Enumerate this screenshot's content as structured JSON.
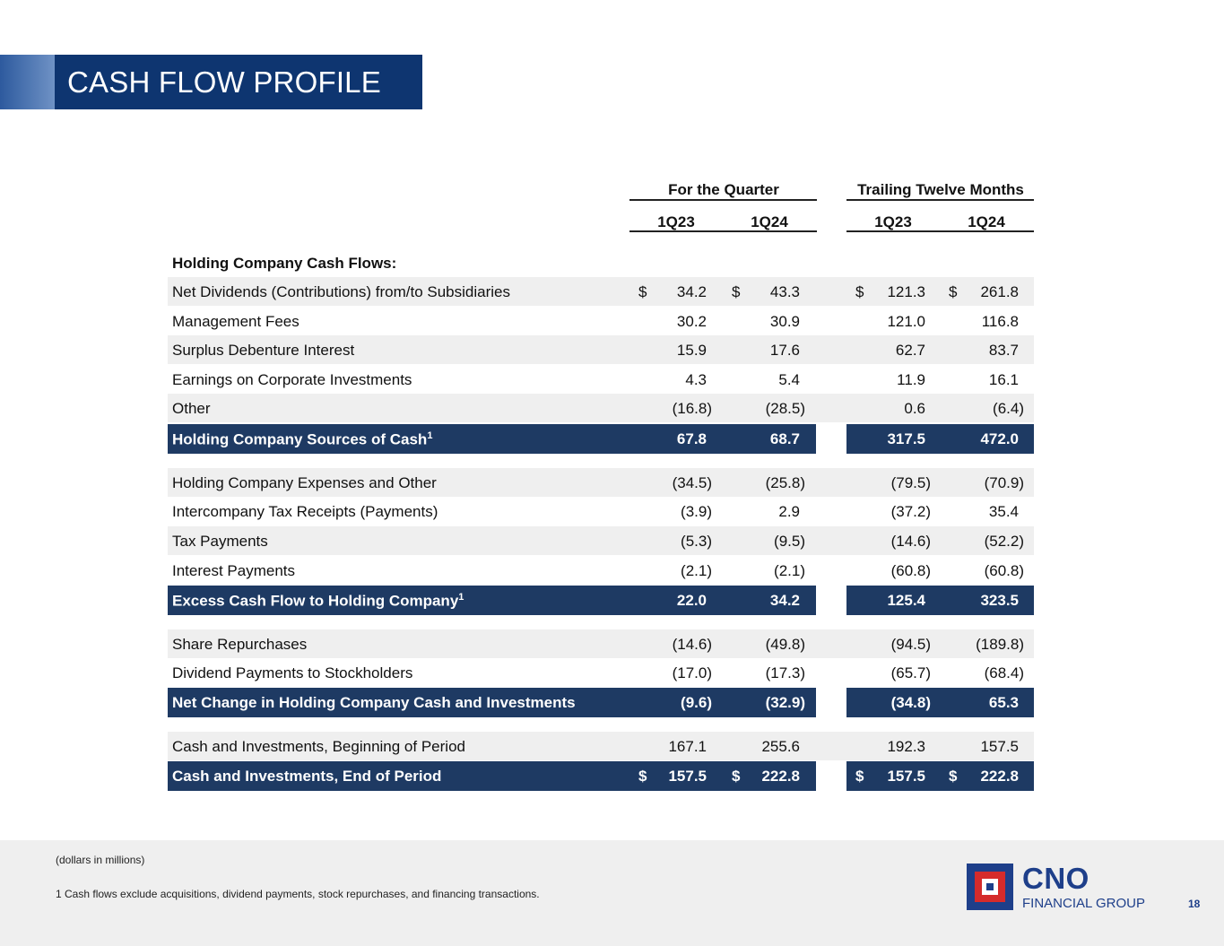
{
  "title": "CASH FLOW PROFILE",
  "headers": {
    "group_quarter": "For the Quarter",
    "group_ttm": "Trailing Twelve Months",
    "cols": [
      "1Q23",
      "1Q24",
      "1Q23",
      "1Q24"
    ]
  },
  "section_label": "Holding Company Cash Flows:",
  "rows": [
    {
      "label": "Net Dividends (Contributions) from/to Subsidiaries",
      "vals": [
        "34.2",
        "43.3",
        "121.3",
        "261.8"
      ],
      "dollar": "$"
    },
    {
      "label": "Management Fees",
      "vals": [
        "30.2",
        "30.9",
        "121.0",
        "116.8"
      ]
    },
    {
      "label": "Surplus Debenture Interest",
      "vals": [
        "15.9",
        "17.6",
        "62.7",
        "83.7"
      ]
    },
    {
      "label": "Earnings on Corporate Investments",
      "vals": [
        "4.3",
        "5.4",
        "11.9",
        "16.1"
      ]
    },
    {
      "label": "Other",
      "vals": [
        "(16.8)",
        "(28.5)",
        "0.6",
        "(6.4)"
      ]
    },
    {
      "label": "Holding Company Sources of Cash",
      "sup": "1",
      "vals": [
        "67.8",
        "68.7",
        "317.5",
        "472.0"
      ]
    },
    {
      "label": "Holding Company Expenses and Other",
      "vals": [
        "(34.5)",
        "(25.8)",
        "(79.5)",
        "(70.9)"
      ]
    },
    {
      "label": "Intercompany Tax Receipts (Payments)",
      "vals": [
        "(3.9)",
        "2.9",
        "(37.2)",
        "35.4"
      ]
    },
    {
      "label": "Tax Payments",
      "vals": [
        "(5.3)",
        "(9.5)",
        "(14.6)",
        "(52.2)"
      ]
    },
    {
      "label": "Interest Payments",
      "vals": [
        "(2.1)",
        "(2.1)",
        "(60.8)",
        "(60.8)"
      ]
    },
    {
      "label": "Excess Cash Flow to Holding Company",
      "sup": "1",
      "vals": [
        "22.0",
        "34.2",
        "125.4",
        "323.5"
      ]
    },
    {
      "label": "Share Repurchases",
      "vals": [
        "(14.6)",
        "(49.8)",
        "(94.5)",
        "(189.8)"
      ]
    },
    {
      "label": "Dividend Payments to Stockholders",
      "vals": [
        "(17.0)",
        "(17.3)",
        "(65.7)",
        "(68.4)"
      ]
    },
    {
      "label": "Net Change in Holding Company Cash and Investments",
      "vals": [
        "(9.6)",
        "(32.9)",
        "(34.8)",
        "65.3"
      ]
    },
    {
      "label": "Cash and Investments, Beginning of Period",
      "vals": [
        "167.1",
        "255.6",
        "192.3",
        "157.5"
      ]
    },
    {
      "label": "Cash and Investments, End of Period",
      "vals": [
        "157.5",
        "222.8",
        "157.5",
        "222.8"
      ],
      "dollar": "$"
    }
  ],
  "footnotes": {
    "units": "(dollars in millions)",
    "note1": "1  Cash flows exclude acquisitions, dividend payments, stock repurchases, and financing transactions."
  },
  "logo": {
    "name": "CNO",
    "sub": "FINANCIAL GROUP"
  },
  "page_number": "18"
}
